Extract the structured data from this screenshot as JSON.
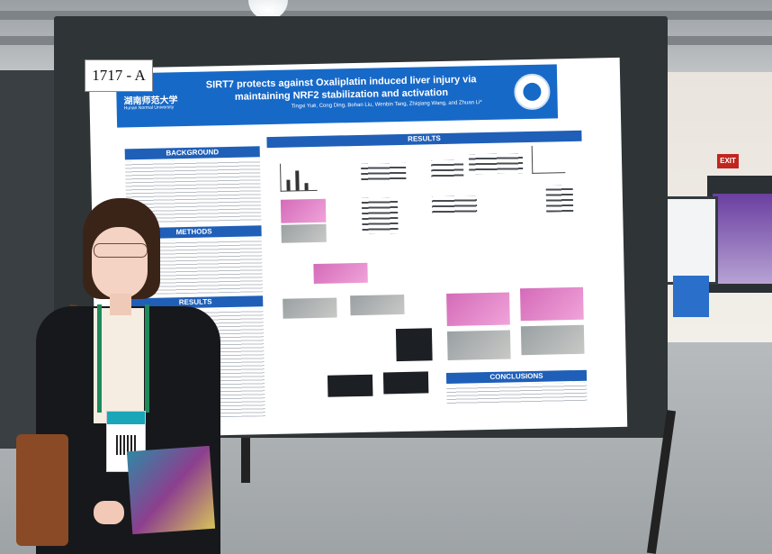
{
  "photo": {
    "description_colors": {
      "poster_header_blue": "#1769c8",
      "section_bar_blue": "#1f5fb8",
      "lanyard_green": "#1e8a5a",
      "exit_red": "#c0261f"
    }
  },
  "environment": {
    "exit_sign": "EXIT"
  },
  "board": {
    "tag": "1717 - A"
  },
  "poster": {
    "title": "SIRT7 protects against Oxaliplatin induced liver injury via maintaining NRF2 stabilization and activation",
    "university_name": "湖南师范大学",
    "university_subtitle": "Hunan Normal University",
    "authors": "Tingxi Yuē, Cong Ding, Bohan Liu, Wenbin Tang, Zhiqiang Wang, and Zhuan Li*",
    "sections": {
      "background": "BACKGROUND",
      "methods": "METHODS",
      "results_left": "RESULTS",
      "results_right": "RESULTS",
      "conclusions": "CONCLUSIONS"
    },
    "emblem_icon": "university-emblem-icon"
  }
}
